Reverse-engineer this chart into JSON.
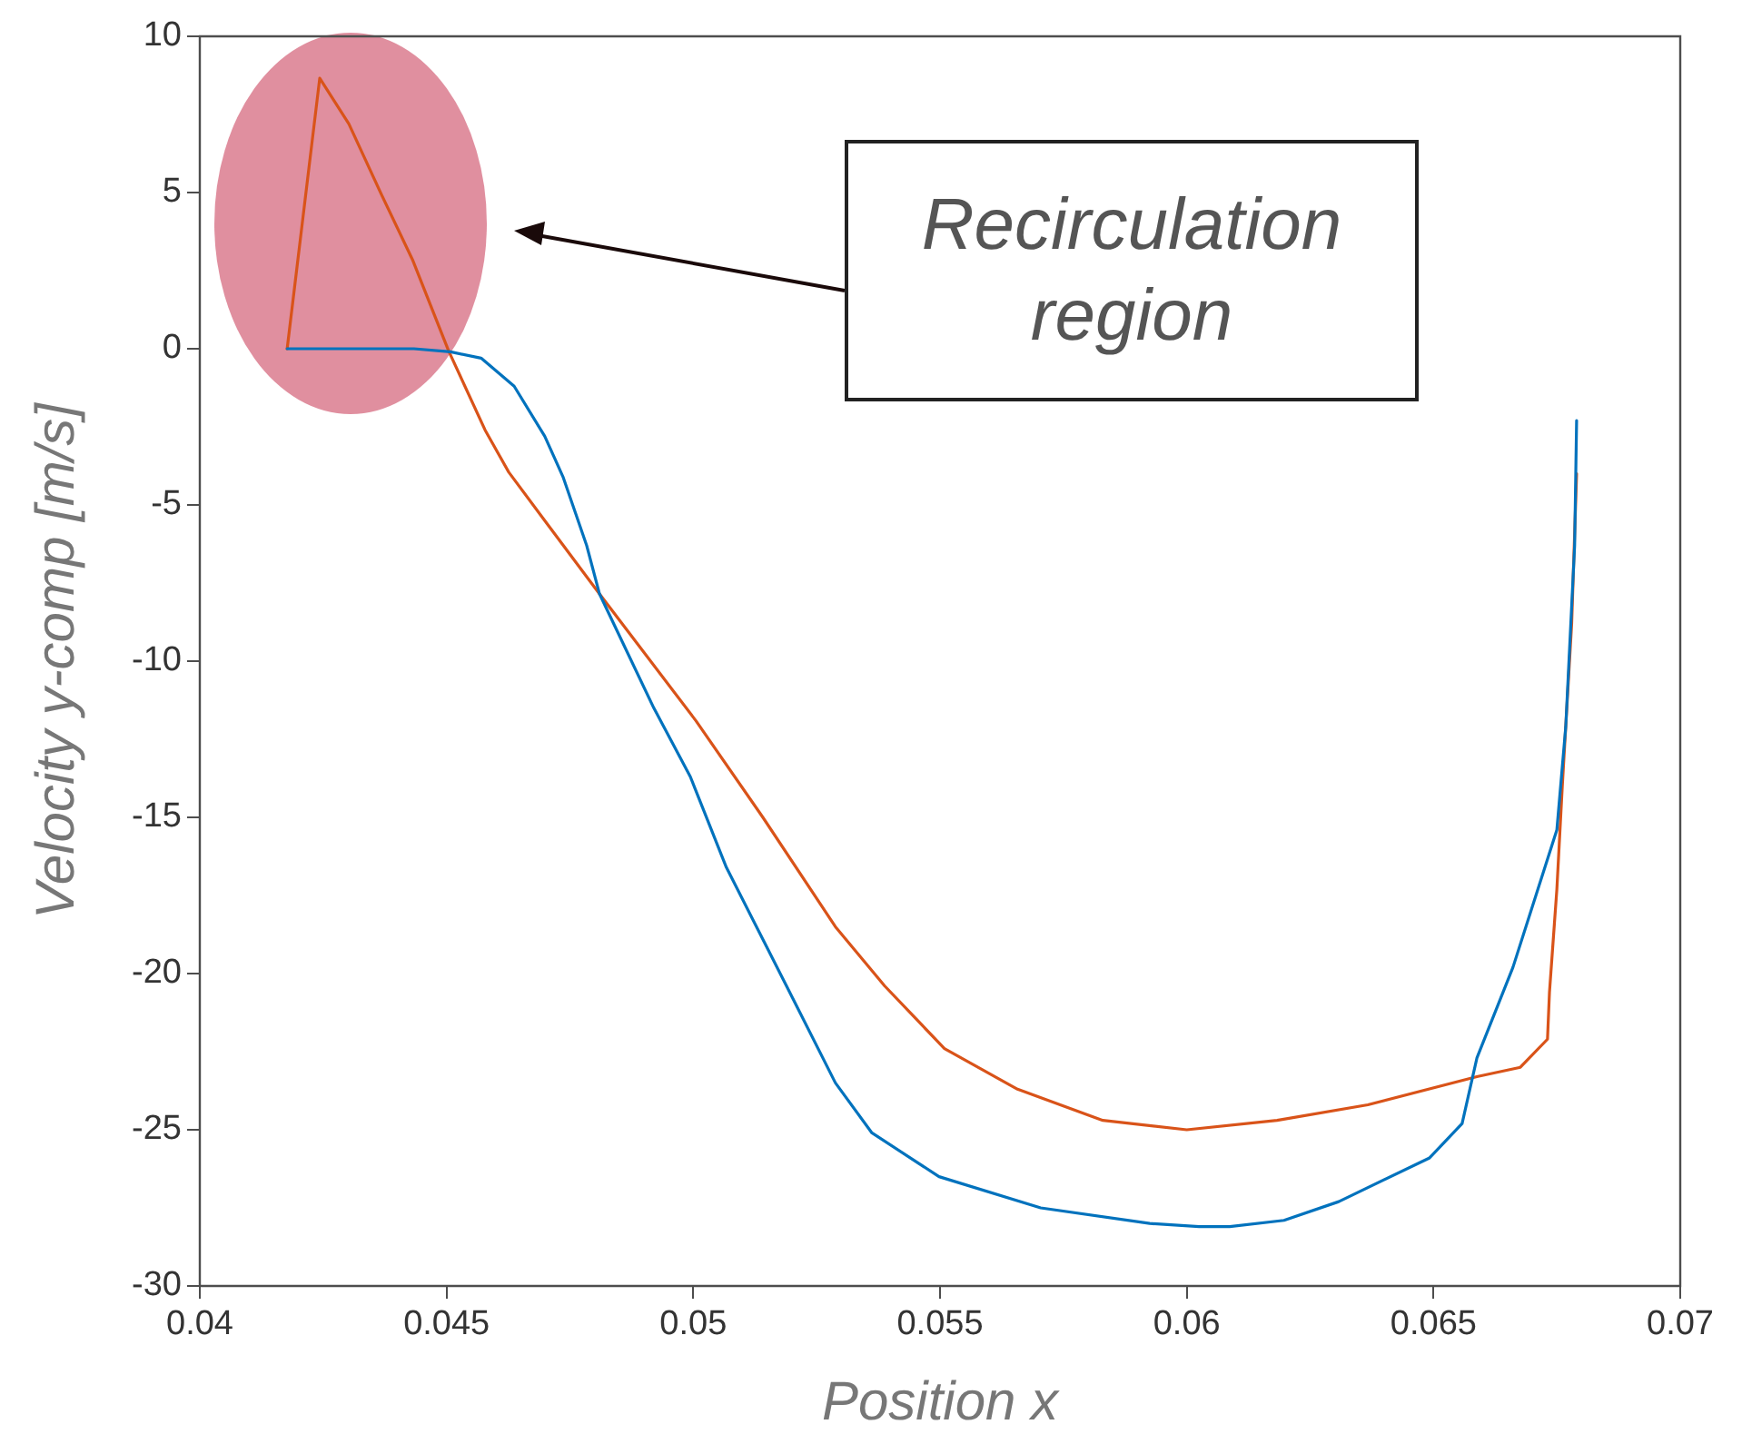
{
  "chart_data": {
    "type": "line",
    "xlabel": "Position x",
    "ylabel": "Velocity y-comp [m/s]",
    "xlim": [
      0.04,
      0.07
    ],
    "xticks": [
      0.04,
      0.045,
      0.05,
      0.055,
      0.06,
      0.065,
      0.07
    ],
    "ylim": [
      -30,
      10
    ],
    "yticks": [
      -30,
      -25,
      -20,
      -15,
      -10,
      -5,
      0,
      5,
      10
    ],
    "grid": false,
    "legend": false,
    "marker": "none",
    "line_style": "solid",
    "annotations": [
      "Recirculation region"
    ],
    "series": [
      {
        "color": "#0072bd",
        "x": [
          0.04177,
          0.04434,
          0.04508,
          0.0457,
          0.04637,
          0.04699,
          0.04736,
          0.04784,
          0.0481,
          0.0492,
          0.04994,
          0.05067,
          0.05189,
          0.05288,
          0.05362,
          0.05498,
          0.05704,
          0.05925,
          0.06025,
          0.06087,
          0.06197,
          0.06308,
          0.06492,
          0.06558,
          0.06588,
          0.06661,
          0.0675,
          0.06768,
          0.06786,
          0.0679
        ],
        "values": [
          0,
          0,
          -0.1,
          -0.3,
          -1.2,
          -2.8,
          -4.1,
          -6.3,
          -7.85,
          -11.5,
          -13.7,
          -16.6,
          -20.4,
          -23.5,
          -25.1,
          -26.5,
          -27.5,
          -28.0,
          -28.1,
          -28.1,
          -27.9,
          -27.3,
          -25.9,
          -24.8,
          -22.7,
          -19.8,
          -15.4,
          -12.1,
          -6.3,
          -2.3
        ]
      },
      {
        "color": "#d95319",
        "x": [
          0.04177,
          0.04243,
          0.04302,
          0.04368,
          0.04431,
          0.04504,
          0.04578,
          0.04626,
          0.04699,
          0.0481,
          0.05005,
          0.05141,
          0.05288,
          0.05388,
          0.05509,
          0.05657,
          0.0583,
          0.06,
          0.06183,
          0.06367,
          0.06588,
          0.06676,
          0.06731,
          0.06735,
          0.0675,
          0.06761,
          0.0678,
          0.0679
        ],
        "values": [
          0,
          8.66,
          7.2,
          4.94,
          2.85,
          -0.06,
          -2.6,
          -3.95,
          -5.5,
          -7.85,
          -11.9,
          -15.0,
          -18.5,
          -20.4,
          -22.4,
          -23.7,
          -24.7,
          -25.0,
          -24.7,
          -24.2,
          -23.3,
          -23.0,
          -22.1,
          -20.6,
          -17.3,
          -14.0,
          -8.8,
          -4.0
        ]
      }
    ]
  }
}
